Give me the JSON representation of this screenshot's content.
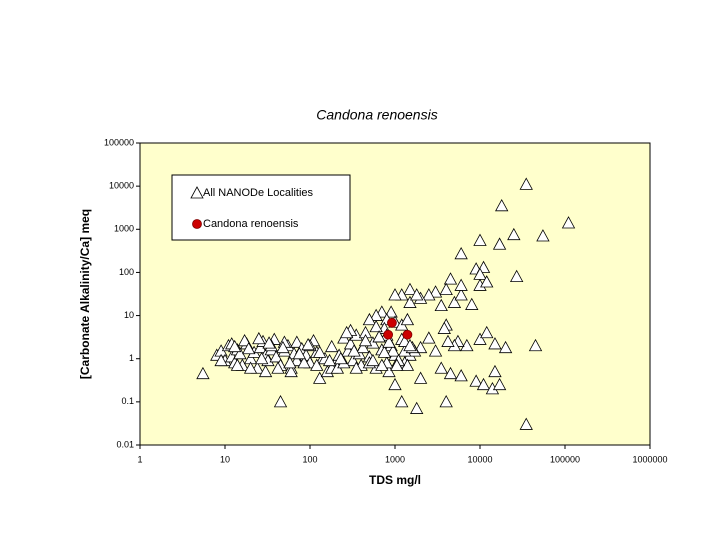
{
  "chart_data": {
    "type": "scatter",
    "title": "Candona renoensis",
    "x_label": "TDS  mg/l",
    "y_label": "[Carbonate Alkalinity/Ca] meq",
    "xscale": "log",
    "yscale": "log",
    "xlim": [
      1,
      1000000
    ],
    "ylim": [
      0.01,
      100000
    ],
    "xticks": [
      1,
      10,
      100,
      1000,
      10000,
      100000,
      1000000
    ],
    "yticks": [
      0.01,
      0.1,
      1,
      10,
      100,
      1000,
      10000,
      100000
    ],
    "background": "#ffffcc",
    "series": [
      {
        "name": "All NANODe Localities",
        "marker": "triangle",
        "color": "#ffffff",
        "x": [
          5.5,
          45,
          130,
          850,
          1000,
          1200,
          1800,
          2000,
          4000,
          4500,
          6000,
          9000,
          11000,
          14000,
          17000,
          15000,
          35000,
          45000,
          20000,
          15000,
          10000,
          7000,
          5500,
          3500,
          4000,
          3500,
          5000,
          6000,
          6000,
          4500,
          4000,
          3000,
          2500,
          2000,
          1500,
          1200,
          1000,
          1500,
          1800,
          900,
          700,
          800,
          600,
          500,
          1000,
          1200,
          1400,
          8000,
          10000,
          9000,
          11000,
          10000,
          12000,
          10000,
          6000,
          17000,
          18000,
          25000,
          27000,
          35000,
          55000,
          110000,
          12000,
          5000,
          3800,
          4200,
          2500,
          3000,
          2000,
          1500,
          1700,
          1300,
          8,
          9,
          10,
          11,
          12,
          13,
          14,
          15,
          16,
          18,
          20,
          22,
          24,
          26,
          28,
          30,
          32,
          35,
          38,
          40,
          45,
          50,
          55,
          60,
          65,
          70,
          75,
          80,
          90,
          100,
          110,
          120,
          140,
          160,
          180,
          200,
          220,
          250,
          280,
          300,
          320,
          350,
          380,
          400,
          450,
          500,
          550,
          600,
          650,
          700,
          750,
          800,
          900,
          1000,
          1100,
          1200,
          1300,
          1400,
          1600,
          12,
          14,
          17,
          20,
          25,
          30,
          35,
          42,
          50,
          60,
          70,
          85,
          100,
          120,
          150,
          180,
          210,
          250,
          300,
          350,
          420,
          500,
          600,
          700,
          800,
          950,
          1100,
          1300,
          1500,
          9,
          13,
          19,
          27,
          33,
          48,
          58,
          75,
          95,
          130,
          170,
          230,
          270,
          330,
          450,
          550,
          650,
          750,
          850,
          1050
        ],
        "values": [
          0.45,
          0.1,
          0.35,
          0.5,
          0.25,
          0.1,
          0.07,
          0.35,
          0.1,
          0.45,
          0.4,
          0.3,
          0.25,
          0.2,
          0.25,
          0.5,
          0.03,
          2,
          1.8,
          2.2,
          2.8,
          2,
          2.5,
          0.6,
          6,
          17,
          20,
          30,
          50,
          70,
          40,
          35,
          30,
          25,
          40,
          30,
          30,
          20,
          30,
          12,
          12,
          8,
          10,
          8,
          7,
          6,
          8,
          18,
          50,
          120,
          130,
          90,
          60,
          550,
          270,
          450,
          3500,
          750,
          80,
          11000,
          700,
          1400,
          4,
          2,
          5,
          2.5,
          3,
          1.5,
          1.8,
          1.2,
          1.5,
          0.8,
          1.2,
          1.5,
          0.9,
          2,
          1.1,
          0.8,
          1.6,
          1.3,
          0.7,
          2.2,
          1,
          1.4,
          0.6,
          1.8,
          2.5,
          1.2,
          0.9,
          1.6,
          2.8,
          1.1,
          0.7,
          1.5,
          2,
          0.6,
          1.3,
          2.4,
          0.9,
          1.7,
          1.2,
          0.8,
          2.6,
          1.4,
          1,
          0.5,
          1.9,
          0.8,
          1.2,
          3,
          1.5,
          2.2,
          0.9,
          3.5,
          1.3,
          0.7,
          4,
          1.1,
          2.3,
          0.6,
          3.2,
          1.6,
          5,
          0.8,
          2,
          1.2,
          0.9,
          2.8,
          1.5,
          0.7,
          1.8,
          2.2,
          0.7,
          2.6,
          0.6,
          2.9,
          0.5,
          2,
          0.6,
          2.4,
          0.5,
          0.9,
          0.8,
          2,
          0.7,
          1,
          0.6,
          0.6,
          0.8,
          4.5,
          0.6,
          1.8,
          0.8,
          5.5,
          0.7,
          3.5,
          1.5,
          0.9,
          2.5,
          2,
          0.9,
          1.9,
          1.7,
          1,
          2.3,
          1.8,
          0.8,
          1.3,
          2.1,
          1.4,
          0.9,
          1,
          4,
          1.5,
          2.6,
          0.9,
          3.2,
          1.4,
          2.4,
          0.7
        ]
      },
      {
        "name": "Candona renoensis",
        "marker": "circle",
        "color": "#cc0000",
        "x": [
          920,
          830,
          1400
        ],
        "values": [
          6.8,
          3.6,
          3.6
        ]
      }
    ],
    "legend": "upper-left"
  }
}
